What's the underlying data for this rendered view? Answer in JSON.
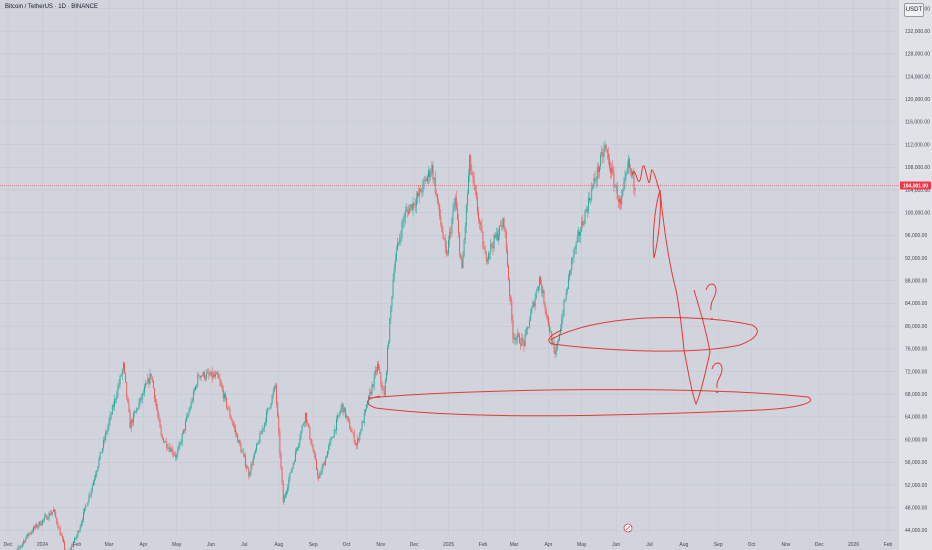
{
  "header": {
    "title": "Bitcoin / TetherUS · 1D · BINANCE",
    "currency": "USDT"
  },
  "chart_data": {
    "type": "candlestick",
    "title": "Bitcoin / TetherUS · 1D · BINANCE",
    "currency": "USDT",
    "y_ticks": [
      "44,000.00",
      "48,000.00",
      "52,000.00",
      "56,000.00",
      "60,000.00",
      "64,000.00",
      "68,000.00",
      "72,000.00",
      "76,000.00",
      "80,000.00",
      "84,000.00",
      "88,000.00",
      "92,000.00",
      "96,000.00",
      "100,000.00",
      "104,000.00",
      "108,000.00",
      "112,000.00",
      "116,000.00",
      "120,000.00",
      "124,000.00",
      "128,000.00",
      "132,000.00",
      "136,000.00"
    ],
    "y_tick_values": [
      44000,
      48000,
      52000,
      56000,
      60000,
      64000,
      68000,
      72000,
      76000,
      80000,
      84000,
      88000,
      92000,
      96000,
      100000,
      104000,
      108000,
      112000,
      116000,
      120000,
      124000,
      128000,
      132000,
      136000
    ],
    "x_ticks": [
      "Dec",
      "2024",
      "Feb",
      "Mar",
      "Apr",
      "May",
      "Jun",
      "Jul",
      "Aug",
      "Sep",
      "Oct",
      "Nov",
      "Dec",
      "2025",
      "Feb",
      "Mar",
      "Apr",
      "May",
      "Jun",
      "Jul",
      "Aug",
      "Sep",
      "Oct",
      "Nov",
      "Dec",
      "2026",
      "Feb"
    ],
    "ylim": [
      43000,
      137500
    ],
    "current_price": 104801,
    "current_price_label": "104,801.00",
    "colors": {
      "up": "#26a69a",
      "down": "#ef5350",
      "price_line": "#f23645",
      "drawing": "#e53935"
    },
    "price_path": [
      {
        "date": "2023-12-01",
        "price": 38000
      },
      {
        "date": "2023-12-20",
        "price": 43500
      },
      {
        "date": "2024-01-11",
        "price": 47500
      },
      {
        "date": "2024-01-23",
        "price": 39500
      },
      {
        "date": "2024-02-01",
        "price": 43000
      },
      {
        "date": "2024-02-15",
        "price": 52000
      },
      {
        "date": "2024-03-05",
        "price": 66000
      },
      {
        "date": "2024-03-14",
        "price": 73000
      },
      {
        "date": "2024-03-20",
        "price": 62500
      },
      {
        "date": "2024-04-08",
        "price": 71500
      },
      {
        "date": "2024-04-17",
        "price": 60500
      },
      {
        "date": "2024-05-01",
        "price": 57000
      },
      {
        "date": "2024-05-21",
        "price": 71500
      },
      {
        "date": "2024-06-07",
        "price": 71000
      },
      {
        "date": "2024-07-05",
        "price": 54000
      },
      {
        "date": "2024-07-29",
        "price": 69500
      },
      {
        "date": "2024-08-05",
        "price": 49000
      },
      {
        "date": "2024-08-25",
        "price": 64500
      },
      {
        "date": "2024-09-06",
        "price": 53000
      },
      {
        "date": "2024-09-27",
        "price": 66000
      },
      {
        "date": "2024-10-10",
        "price": 59000
      },
      {
        "date": "2024-10-29",
        "price": 73000
      },
      {
        "date": "2024-11-04",
        "price": 67500
      },
      {
        "date": "2024-11-13",
        "price": 91000
      },
      {
        "date": "2024-11-22",
        "price": 99500
      },
      {
        "date": "2024-12-05",
        "price": 103000
      },
      {
        "date": "2024-12-17",
        "price": 108000
      },
      {
        "date": "2024-12-30",
        "price": 92000
      },
      {
        "date": "2025-01-07",
        "price": 102500
      },
      {
        "date": "2025-01-13",
        "price": 89500
      },
      {
        "date": "2025-01-20",
        "price": 109000
      },
      {
        "date": "2025-02-03",
        "price": 92000
      },
      {
        "date": "2025-02-20",
        "price": 98500
      },
      {
        "date": "2025-02-28",
        "price": 78500
      },
      {
        "date": "2025-03-10",
        "price": 77000
      },
      {
        "date": "2025-03-24",
        "price": 88500
      },
      {
        "date": "2025-04-07",
        "price": 74500
      },
      {
        "date": "2025-04-22",
        "price": 91500
      },
      {
        "date": "2025-05-10",
        "price": 104000
      },
      {
        "date": "2025-05-22",
        "price": 111500
      },
      {
        "date": "2025-06-05",
        "price": 101000
      },
      {
        "date": "2025-06-12",
        "price": 108500
      },
      {
        "date": "2025-06-18",
        "price": 104801
      }
    ]
  }
}
